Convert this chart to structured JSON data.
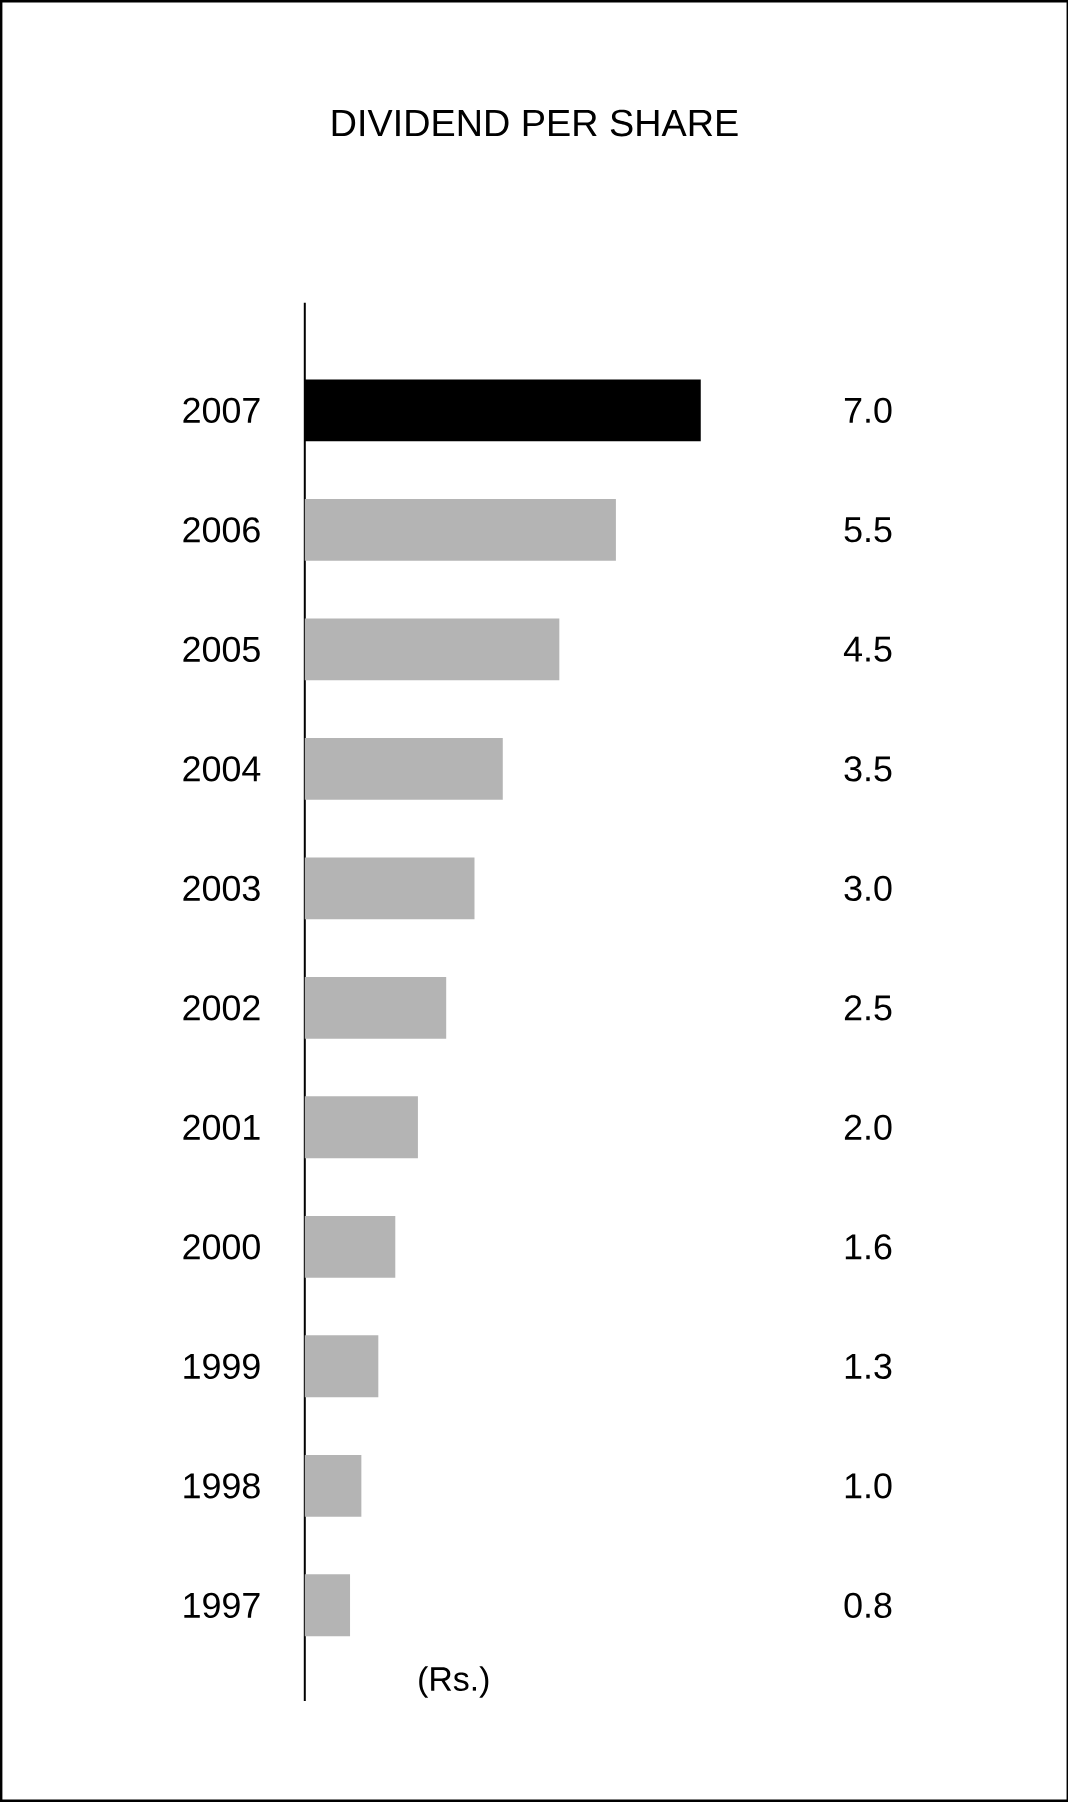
{
  "chart_data": {
    "type": "bar",
    "orientation": "horizontal",
    "title": "DIVIDEND PER SHARE",
    "xlabel": "(Rs.)",
    "categories": [
      "2007",
      "2006",
      "2005",
      "2004",
      "2003",
      "2002",
      "2001",
      "2000",
      "1999",
      "1998",
      "1997"
    ],
    "values": [
      7.0,
      5.5,
      4.5,
      3.5,
      3.0,
      2.5,
      2.0,
      1.6,
      1.3,
      1.0,
      0.8
    ],
    "value_labels": [
      "7.0",
      "5.5",
      "4.5",
      "3.5",
      "3.0",
      "2.5",
      "2.0",
      "1.6",
      "1.3",
      "1.0",
      "0.8"
    ],
    "colors": [
      "#000000",
      "#b4b4b4",
      "#b4b4b4",
      "#b4b4b4",
      "#b4b4b4",
      "#b4b4b4",
      "#b4b4b4",
      "#b4b4b4",
      "#b4b4b4",
      "#b4b4b4",
      "#b4b4b4"
    ],
    "tick_labels": "y"
  }
}
